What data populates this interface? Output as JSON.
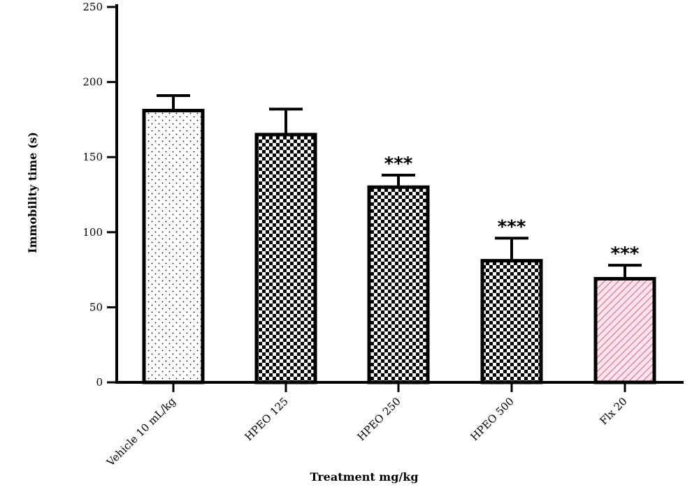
{
  "chart_data": {
    "type": "bar",
    "categories": [
      "Vehicle 10 mL/kg",
      "HPEO 125",
      "HPEO 250",
      "HPEO 500",
      "Flx 20"
    ],
    "values": [
      181,
      165,
      130,
      81,
      69
    ],
    "errors": [
      10,
      17,
      8,
      15,
      9
    ],
    "significance": [
      "",
      "",
      "***",
      "***",
      "***"
    ],
    "patterns": [
      "dots",
      "checker",
      "checker",
      "checker",
      "hatch"
    ],
    "xlabel": "Treatment mg/kg",
    "ylabel": "Immobility time (s)",
    "ylim": [
      0,
      250
    ],
    "yticks": [
      0,
      50,
      100,
      150,
      200,
      250
    ],
    "grid": false,
    "colors": {
      "hatch_stroke": "#c9708a",
      "hatch_bg": "#ffe3ec",
      "dot_bg": "#ffffff"
    }
  }
}
